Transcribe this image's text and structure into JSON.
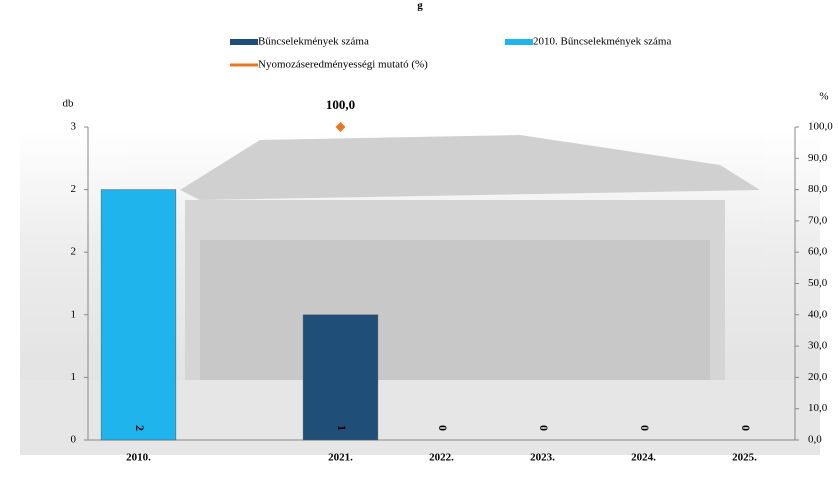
{
  "chart_data": {
    "type": "bar",
    "categories": [
      "2010.",
      null,
      "2021.",
      "2022.",
      "2023.",
      "2024.",
      "2025."
    ],
    "series": [
      {
        "name": "Bűncselekmények száma",
        "color": "#1f4e79",
        "values": [
          null,
          null,
          1,
          0,
          0,
          0,
          0
        ]
      },
      {
        "name": "2010. Bűncselekmények száma",
        "color": "#1fb4ec",
        "values": [
          2,
          null,
          null,
          null,
          null,
          null,
          null
        ]
      },
      {
        "name": "Nyomozáseredményességi mutató (%)",
        "color": "#e87722",
        "axis": "y2",
        "type": "scatter",
        "values": [
          null,
          null,
          100,
          null,
          null,
          null,
          null
        ],
        "value_labels": [
          null,
          null,
          "100,0",
          null,
          null,
          null,
          null
        ]
      }
    ],
    "ylabel": "db",
    "y2label": "%",
    "ylim": [
      0,
      2.5
    ],
    "yticks": [
      0,
      {
        "value": 0.5,
        "label": "1"
      },
      1,
      {
        "value": 1.5,
        "label": "2"
      },
      2,
      {
        "value": 2.5,
        "label": "3"
      }
    ],
    "y2lim": [
      0,
      100
    ],
    "y2ticks": [
      {
        "value": 0,
        "label": "0,0"
      },
      {
        "value": 10,
        "label": "10,0"
      },
      {
        "value": 20,
        "label": "20,0"
      },
      {
        "value": 30,
        "label": "30,0"
      },
      {
        "value": 40,
        "label": "40,0"
      },
      {
        "value": 50,
        "label": "50,0"
      },
      {
        "value": 60,
        "label": "60,0"
      },
      {
        "value": 70,
        "label": "70,0"
      },
      {
        "value": 80,
        "label": "80,0"
      },
      {
        "value": 90,
        "label": "90,0"
      },
      {
        "value": 100,
        "label": "100,0"
      }
    ]
  }
}
